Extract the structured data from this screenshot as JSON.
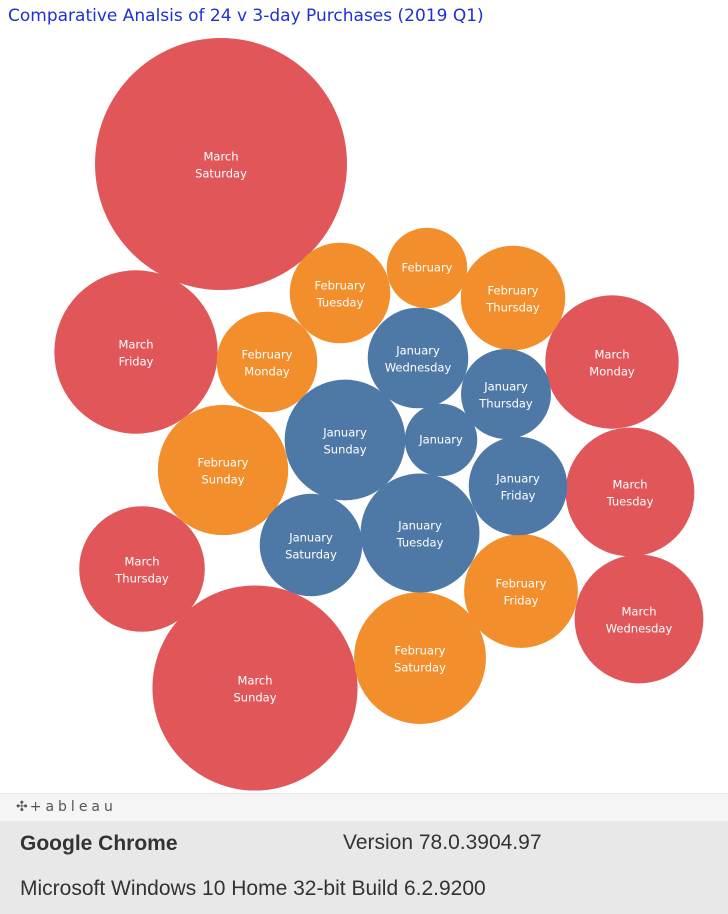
{
  "chart_data": {
    "type": "packed-bubble",
    "title": "Comparative Analsis of 24 v 3-day Purchases (2019 Q1)",
    "colors": {
      "January": "#4e79a7",
      "February": "#f28e2b",
      "March": "#e15759"
    },
    "label_text_color": {
      "January": "#ffffff",
      "February": "#333333",
      "March": "#ffffff"
    },
    "bubbles": [
      {
        "month": "March",
        "day": "Saturday",
        "size": 15700
      },
      {
        "month": "March",
        "day": "Friday",
        "size": 6600
      },
      {
        "month": "March",
        "day": "Sunday",
        "size": 10400
      },
      {
        "month": "March",
        "day": "Monday",
        "size": 4400
      },
      {
        "month": "March",
        "day": "Tuesday",
        "size": 4100
      },
      {
        "month": "March",
        "day": "Wednesday",
        "size": 4100
      },
      {
        "month": "March",
        "day": "Thursday",
        "size": 3900
      },
      {
        "month": "February",
        "day": "",
        "size": 1600
      },
      {
        "month": "February",
        "day": "Tuesday",
        "size": 2500
      },
      {
        "month": "February",
        "day": "Thursday",
        "size": 2700
      },
      {
        "month": "February",
        "day": "Monday",
        "size": 2500
      },
      {
        "month": "February",
        "day": "Sunday",
        "size": 4200
      },
      {
        "month": "February",
        "day": "Friday",
        "size": 3200
      },
      {
        "month": "February",
        "day": "Saturday",
        "size": 4300
      },
      {
        "month": "January",
        "day": "Wednesday",
        "size": 2500
      },
      {
        "month": "January",
        "day": "Thursday",
        "size": 2000
      },
      {
        "month": "January",
        "day": "Sunday",
        "size": 3600
      },
      {
        "month": "January",
        "day": "",
        "size": 1300
      },
      {
        "month": "January",
        "day": "Friday",
        "size": 2400
      },
      {
        "month": "January",
        "day": "Saturday",
        "size": 2600
      },
      {
        "month": "January",
        "day": "Tuesday",
        "size": 3500
      }
    ]
  },
  "footer": {
    "logo_text": "+ableau",
    "browser_name": "Google Chrome",
    "browser_version": "Version 78.0.3904.97",
    "os_info": "Microsoft Windows 10 Home 32-bit Build 6.2.9200"
  }
}
